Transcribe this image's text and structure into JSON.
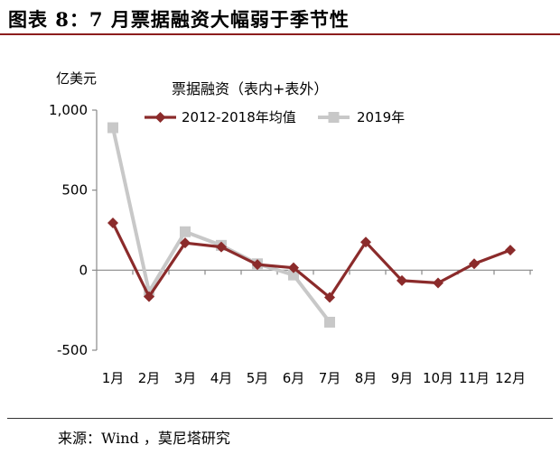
{
  "figure": {
    "title": "图表 8：7 月票据融资大幅弱于季节性",
    "source": "来源：Wind ，莫尼塔研究"
  },
  "chart_data": {
    "type": "line",
    "title": "票据融资（表内+表外）",
    "ylabel": "亿美元",
    "ylim": [
      -500,
      1000
    ],
    "yticks": [
      -500,
      0,
      500,
      1000
    ],
    "ytick_labels": [
      "-500",
      "0",
      "500",
      "1,000"
    ],
    "categories": [
      "1月",
      "2月",
      "3月",
      "4月",
      "5月",
      "6月",
      "7月",
      "8月",
      "9月",
      "10月",
      "11月",
      "12月"
    ],
    "legend_position": "top",
    "series": [
      {
        "name": "2012-2018年均值",
        "color": "#8b2b2b",
        "marker": "diamond",
        "values": [
          295,
          -165,
          170,
          145,
          35,
          15,
          -170,
          175,
          -65,
          -80,
          40,
          125
        ]
      },
      {
        "name": "2019年",
        "color": "#c8c8c8",
        "marker": "square",
        "values": [
          890,
          -135,
          240,
          155,
          40,
          -30,
          -325,
          null,
          null,
          null,
          null,
          null
        ]
      }
    ]
  }
}
